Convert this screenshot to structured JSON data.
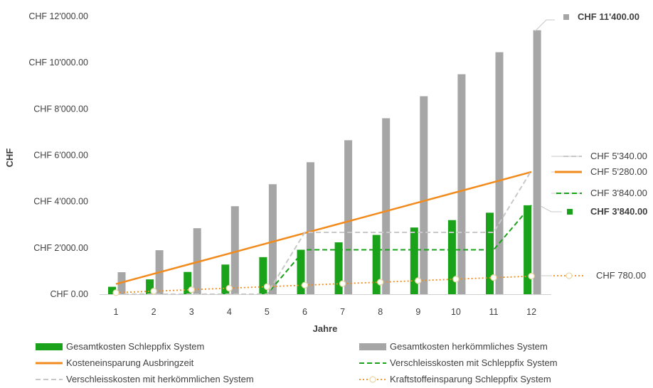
{
  "chart_data": {
    "type": "bar",
    "title": "",
    "xlabel": "Jahre",
    "ylabel": "CHF",
    "ylim": [
      0,
      12000
    ],
    "y_ticks": [
      "CHF 0.00",
      "CHF 2'000.00",
      "CHF 4'000.00",
      "CHF 6'000.00",
      "CHF 8'000.00",
      "CHF 10'000.00",
      "CHF 12'000.00"
    ],
    "y_tick_values": [
      0,
      2000,
      4000,
      6000,
      8000,
      10000,
      12000
    ],
    "categories": [
      "1",
      "2",
      "3",
      "4",
      "5",
      "6",
      "7",
      "8",
      "9",
      "10",
      "11",
      "12"
    ],
    "grid": false,
    "legend_position": "bottom",
    "series": [
      {
        "name": "Gesamtkosten Schleppfix System",
        "kind": "bar",
        "color": "#1aa31a",
        "values": [
          320,
          640,
          960,
          1280,
          1600,
          1920,
          2240,
          2560,
          2880,
          3200,
          3520,
          3840
        ]
      },
      {
        "name": "Gesamtkosten herkömmliches System",
        "kind": "bar",
        "color": "#a6a6a6",
        "values": [
          950,
          1900,
          2850,
          3800,
          4750,
          5700,
          6650,
          7600,
          8550,
          9500,
          10450,
          11400
        ]
      },
      {
        "name": "Kosteneinsparung Ausbringzeit",
        "kind": "line",
        "style": "solid",
        "color": "#f28a1c",
        "values": [
          440,
          880,
          1320,
          1760,
          2200,
          2640,
          3080,
          3520,
          3960,
          4400,
          4840,
          5280
        ]
      },
      {
        "name": "Verschleisskosten mit Schleppfix System",
        "kind": "line",
        "style": "dashed",
        "color": "#1aa31a",
        "values": [
          0,
          0,
          0,
          0,
          0,
          1920,
          1920,
          1920,
          1920,
          1920,
          1920,
          3840
        ]
      },
      {
        "name": "Verschleisskosten mit herkömmlichen System",
        "kind": "line",
        "style": "dashed",
        "color": "#c8c8c8",
        "values": [
          0,
          0,
          0,
          0,
          0,
          2670,
          2670,
          2670,
          2670,
          2670,
          2670,
          5340
        ]
      },
      {
        "name": "Kraftstoffeinsparung Schleppfix System",
        "kind": "line",
        "style": "dotted-markers",
        "color": "#f28a1c",
        "values": [
          65,
          130,
          195,
          260,
          325,
          390,
          455,
          520,
          585,
          650,
          715,
          780
        ]
      }
    ],
    "annotations": [
      {
        "text": "CHF 11'400.00",
        "series": 1,
        "color": "#404040",
        "bold": true
      },
      {
        "text": "CHF 5'340.00",
        "series": 4,
        "color": "#404040",
        "bold": false
      },
      {
        "text": "CHF 5'280.00",
        "series": 2,
        "color": "#404040",
        "bold": false
      },
      {
        "text": "CHF 3'840.00",
        "series": 3,
        "color": "#404040",
        "bold": false
      },
      {
        "text": "CHF 3'840.00",
        "series": 0,
        "color": "#1aa31a",
        "bold": true
      },
      {
        "text": "CHF 780.00",
        "series": 5,
        "color": "#404040",
        "bold": false
      }
    ]
  }
}
